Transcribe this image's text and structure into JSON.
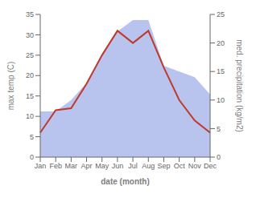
{
  "chart_data": {
    "type": "line",
    "categories": [
      "Jan",
      "Feb",
      "Mar",
      "Apr",
      "May",
      "Jun",
      "Jul",
      "Aug",
      "Sep",
      "Oct",
      "Nov",
      "Dec"
    ],
    "series": [
      {
        "type": "area",
        "axis": "y2",
        "color": "#b8c4ee",
        "values": [
          8,
          8,
          10,
          13,
          18,
          22,
          24,
          24,
          16,
          15,
          14,
          11
        ]
      },
      {
        "type": "line",
        "color": "#c0392b",
        "values": [
          6,
          11.5,
          12,
          18,
          25,
          31,
          28,
          31,
          22,
          14,
          9,
          6
        ]
      }
    ],
    "xlabel": "date (month)",
    "ylabel": "max temp (C)",
    "y2label": "med. precipitation (kg/m2)",
    "ylim": [
      0,
      35
    ],
    "yticks": [
      0,
      5,
      10,
      15,
      20,
      25,
      30,
      35
    ],
    "y2lim": [
      0,
      25
    ],
    "y2ticks": [
      0,
      5,
      10,
      15,
      20,
      25
    ],
    "grid": false
  }
}
